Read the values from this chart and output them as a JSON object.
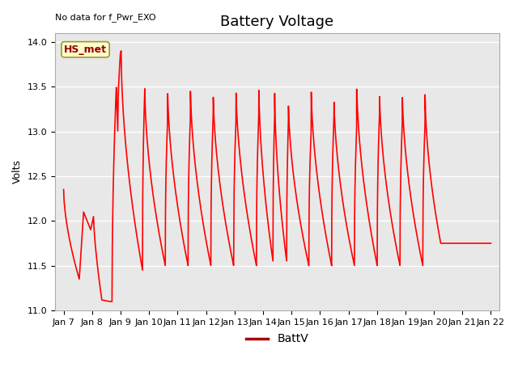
{
  "title": "Battery Voltage",
  "title_note": "No data for f_Pwr_EXO",
  "ylabel": "Volts",
  "ylim": [
    11.0,
    14.1
  ],
  "yticks": [
    11.0,
    11.5,
    12.0,
    12.5,
    13.0,
    13.5,
    14.0
  ],
  "xtick_labels": [
    "Jan 7",
    "Jan 8",
    "Jan 9",
    "Jan 10",
    "Jan 11",
    "Jan 12",
    "Jan 13",
    "Jan 14",
    "Jan 15",
    "Jan 16",
    "Jan 17",
    "Jan 18",
    "Jan 19",
    "Jan 20",
    "Jan 21",
    "Jan 22"
  ],
  "line_color": "#ff0000",
  "line_width": 1.2,
  "bg_color": "#e8e8e8",
  "legend_label": "BattV",
  "legend_line_color": "#aa0000",
  "annot_label": "HS_met",
  "annot_bg": "#ffffcc",
  "annot_border": "#999933",
  "title_fontsize": 13,
  "ylabel_fontsize": 9,
  "tick_fontsize": 8
}
